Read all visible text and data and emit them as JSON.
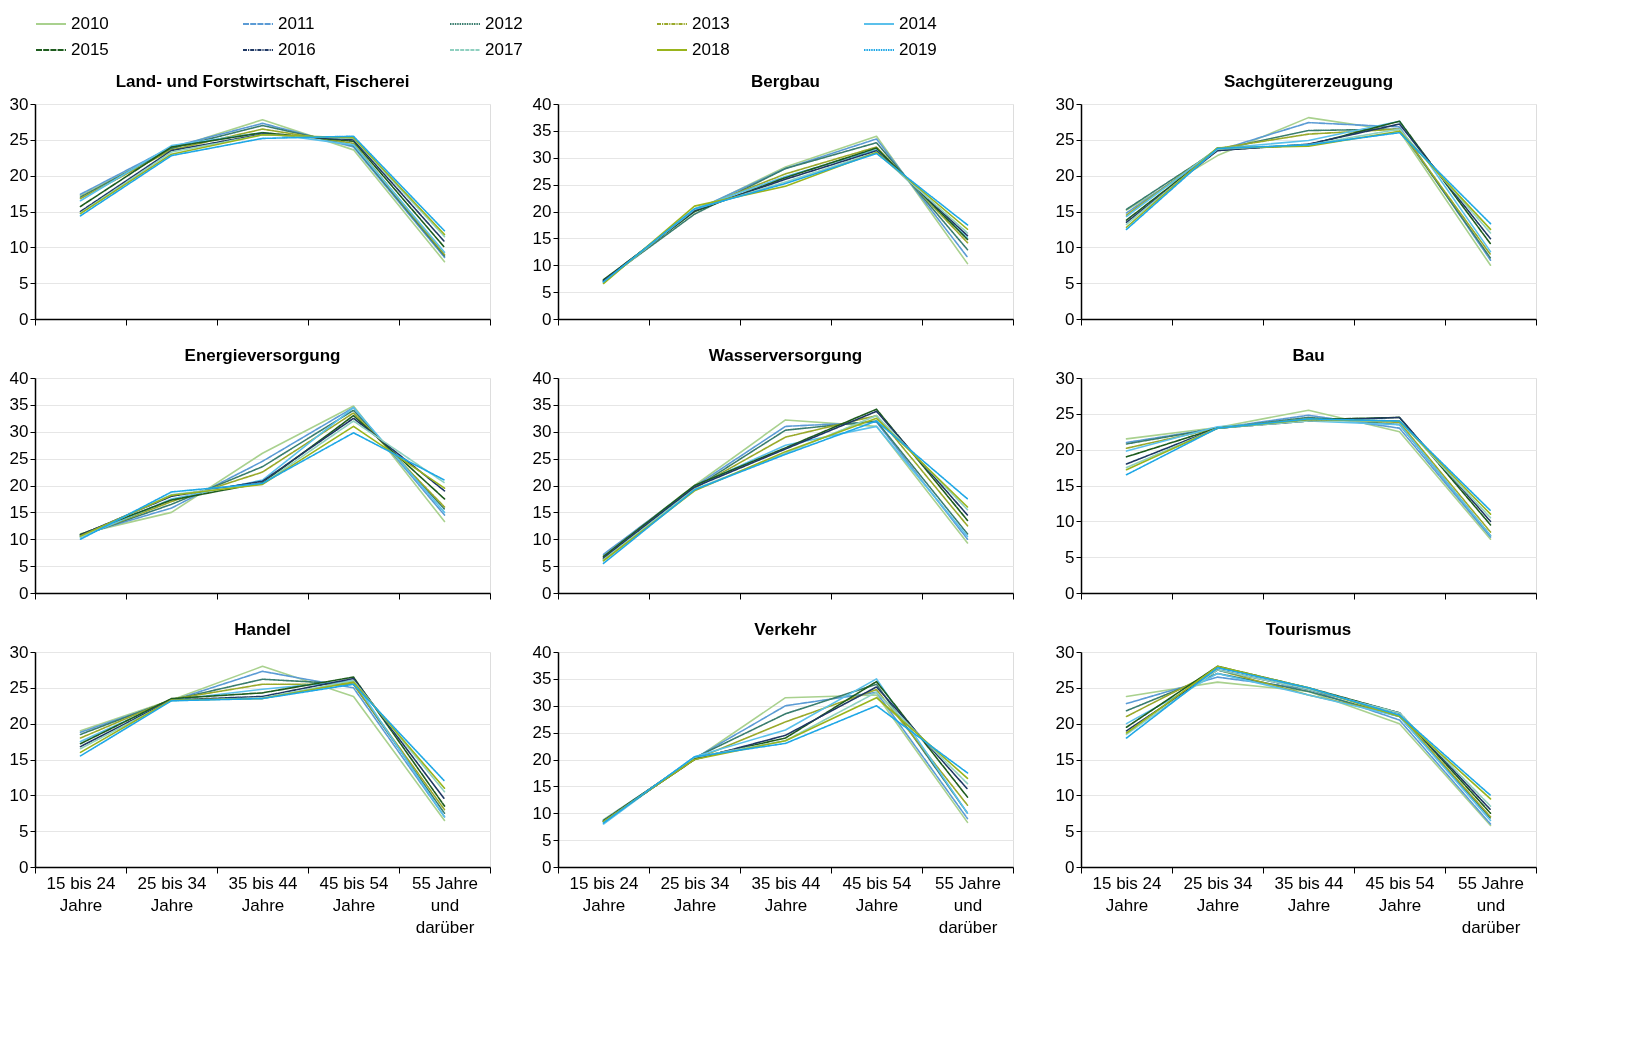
{
  "chart_data": [
    {
      "type": "line",
      "title": "Land- und Forstwirtschaft, Fischerei",
      "categories": [
        "15 bis 24 Jahre",
        "25 bis 34 Jahre",
        "35 bis 44 Jahre",
        "45 bis 54 Jahre",
        "55 Jahre und darüber"
      ],
      "ylim": [
        0,
        30
      ],
      "yticks": [
        0,
        5,
        10,
        15,
        20,
        25,
        30
      ],
      "grid": "y",
      "legend": "top",
      "tick_labels": "y",
      "series": [
        {
          "name": "2010",
          "color": "#a9d18e",
          "line_style": "solid",
          "values": [
            17.2,
            23.8,
            27.8,
            23.6,
            8.0
          ]
        },
        {
          "name": "2011",
          "color": "#5b9bd5",
          "line_style": "longdash",
          "values": [
            17.4,
            24.0,
            27.3,
            24.0,
            8.6
          ]
        },
        {
          "name": "2012",
          "color": "#3a7d6e",
          "line_style": "dotted",
          "values": [
            17.0,
            23.8,
            27.0,
            24.2,
            8.8
          ]
        },
        {
          "name": "2013",
          "color": "#9aa92a",
          "line_style": "dashdot",
          "values": [
            16.8,
            23.6,
            26.5,
            24.5,
            9.0
          ]
        },
        {
          "name": "2014",
          "color": "#5bc0eb",
          "line_style": "solid",
          "values": [
            16.5,
            24.2,
            26.0,
            24.3,
            9.3
          ]
        },
        {
          "name": "2015",
          "color": "#1e5c1e",
          "line_style": "longdash",
          "values": [
            15.7,
            24.0,
            26.0,
            24.8,
            10.0
          ]
        },
        {
          "name": "2016",
          "color": "#1f3864",
          "line_style": "dashdot",
          "values": [
            15.0,
            23.5,
            25.8,
            25.0,
            10.8
          ]
        },
        {
          "name": "2017",
          "color": "#8fd0c0",
          "line_style": "dashed",
          "values": [
            14.8,
            23.3,
            25.7,
            25.2,
            11.5
          ]
        },
        {
          "name": "2018",
          "color": "#99b41c",
          "line_style": "solid",
          "values": [
            14.7,
            23.0,
            25.7,
            25.3,
            11.8
          ]
        },
        {
          "name": "2019",
          "color": "#1ea7e6",
          "line_style": "dotted",
          "values": [
            14.4,
            22.8,
            25.2,
            25.5,
            12.3
          ]
        }
      ]
    },
    {
      "type": "line",
      "title": "Bergbau",
      "categories": [
        "15 bis 24 Jahre",
        "25 bis 34 Jahre",
        "35 bis 44 Jahre",
        "45 bis 54 Jahre",
        "55 Jahre und darüber"
      ],
      "ylim": [
        0,
        40
      ],
      "yticks": [
        0,
        5,
        10,
        15,
        20,
        25,
        30,
        35,
        40
      ],
      "grid": "y",
      "legend": "top",
      "tick_labels": "y",
      "series": [
        {
          "name": "2010",
          "color": "#a9d18e",
          "line_style": "solid",
          "values": [
            7.2,
            20.0,
            28.3,
            34.0,
            10.3
          ]
        },
        {
          "name": "2011",
          "color": "#5b9bd5",
          "line_style": "longdash",
          "values": [
            7.0,
            20.2,
            28.0,
            33.5,
            11.5
          ]
        },
        {
          "name": "2012",
          "color": "#3a7d6e",
          "line_style": "dotted",
          "values": [
            7.1,
            19.5,
            28.0,
            32.8,
            12.9
          ]
        },
        {
          "name": "2013",
          "color": "#9aa92a",
          "line_style": "dashdot",
          "values": [
            6.9,
            20.3,
            27.0,
            32.0,
            14.2
          ]
        },
        {
          "name": "2014",
          "color": "#5bc0eb",
          "line_style": "solid",
          "values": [
            7.0,
            20.5,
            26.5,
            31.5,
            15.0
          ]
        },
        {
          "name": "2015",
          "color": "#1e5c1e",
          "line_style": "longdash",
          "values": [
            7.3,
            20.0,
            26.3,
            31.8,
            14.8
          ]
        },
        {
          "name": "2016",
          "color": "#1f3864",
          "line_style": "dashdot",
          "values": [
            7.1,
            20.2,
            26.0,
            31.3,
            15.5
          ]
        },
        {
          "name": "2017",
          "color": "#8fd0c0",
          "line_style": "dashed",
          "values": [
            6.8,
            20.4,
            25.5,
            31.0,
            16.0
          ]
        },
        {
          "name": "2018",
          "color": "#99b41c",
          "line_style": "solid",
          "values": [
            6.6,
            21.0,
            24.7,
            31.0,
            16.7
          ]
        },
        {
          "name": "2019",
          "color": "#1ea7e6",
          "line_style": "dotted",
          "values": [
            6.9,
            20.5,
            25.2,
            30.8,
            17.5
          ]
        }
      ]
    },
    {
      "type": "line",
      "title": "Sachgütererzeugung",
      "categories": [
        "15 bis 24 Jahre",
        "25 bis 34 Jahre",
        "35 bis 44 Jahre",
        "45 bis 54 Jahre",
        "55 Jahre und darüber"
      ],
      "ylim": [
        0,
        30
      ],
      "yticks": [
        0,
        5,
        10,
        15,
        20,
        25,
        30
      ],
      "grid": "y",
      "legend": "top",
      "tick_labels": "y",
      "series": [
        {
          "name": "2010",
          "color": "#a9d18e",
          "line_style": "solid",
          "values": [
            15.2,
            22.8,
            28.1,
            26.2,
            7.5
          ]
        },
        {
          "name": "2011",
          "color": "#5b9bd5",
          "line_style": "longdash",
          "values": [
            14.8,
            23.5,
            27.4,
            26.8,
            8.2
          ]
        },
        {
          "name": "2012",
          "color": "#3a7d6e",
          "line_style": "dotted",
          "values": [
            15.3,
            23.6,
            26.3,
            26.5,
            8.5
          ]
        },
        {
          "name": "2013",
          "color": "#9aa92a",
          "line_style": "dashdot",
          "values": [
            14.5,
            23.8,
            25.8,
            26.5,
            9.0
          ]
        },
        {
          "name": "2014",
          "color": "#5bc0eb",
          "line_style": "solid",
          "values": [
            14.3,
            23.8,
            24.9,
            27.6,
            9.4
          ]
        },
        {
          "name": "2015",
          "color": "#1e5c1e",
          "line_style": "longdash",
          "values": [
            13.8,
            23.6,
            24.3,
            27.6,
            10.5
          ]
        },
        {
          "name": "2016",
          "color": "#1f3864",
          "line_style": "dashdot",
          "values": [
            13.5,
            23.5,
            24.4,
            27.2,
            11.2
          ]
        },
        {
          "name": "2017",
          "color": "#8fd0c0",
          "line_style": "dashed",
          "values": [
            13.2,
            23.7,
            24.3,
            26.5,
            12.0
          ]
        },
        {
          "name": "2018",
          "color": "#99b41c",
          "line_style": "solid",
          "values": [
            12.8,
            23.9,
            24.1,
            26.2,
            12.5
          ]
        },
        {
          "name": "2019",
          "color": "#1ea7e6",
          "line_style": "dotted",
          "values": [
            12.5,
            23.8,
            24.3,
            26.0,
            13.3
          ]
        }
      ]
    },
    {
      "type": "line",
      "title": "Energieversorgung",
      "categories": [
        "15 bis 24 Jahre",
        "25 bis 34 Jahre",
        "35 bis 44 Jahre",
        "45 bis 54 Jahre",
        "55 Jahre und darüber"
      ],
      "ylim": [
        0,
        40
      ],
      "yticks": [
        0,
        5,
        10,
        15,
        20,
        25,
        30,
        35,
        40
      ],
      "grid": "y",
      "legend": "top",
      "tick_labels": "y",
      "series": [
        {
          "name": "2010",
          "color": "#a9d18e",
          "line_style": "solid",
          "values": [
            11.0,
            15.0,
            26.0,
            34.8,
            13.3
          ]
        },
        {
          "name": "2011",
          "color": "#5b9bd5",
          "line_style": "longdash",
          "values": [
            10.8,
            15.8,
            24.5,
            34.5,
            14.5
          ]
        },
        {
          "name": "2012",
          "color": "#3a7d6e",
          "line_style": "dotted",
          "values": [
            10.6,
            16.5,
            23.5,
            34.0,
            15.6
          ]
        },
        {
          "name": "2013",
          "color": "#9aa92a",
          "line_style": "dashdot",
          "values": [
            10.5,
            17.0,
            22.5,
            33.5,
            16.0
          ]
        },
        {
          "name": "2014",
          "color": "#5bc0eb",
          "line_style": "solid",
          "values": [
            10.3,
            17.5,
            21.0,
            34.5,
            15.0
          ]
        },
        {
          "name": "2015",
          "color": "#1e5c1e",
          "line_style": "longdash",
          "values": [
            10.9,
            17.3,
            20.5,
            33.0,
            17.5
          ]
        },
        {
          "name": "2016",
          "color": "#1f3864",
          "line_style": "dashdot",
          "values": [
            10.8,
            18.0,
            20.8,
            32.5,
            19.0
          ]
        },
        {
          "name": "2017",
          "color": "#8fd0c0",
          "line_style": "dashed",
          "values": [
            10.4,
            18.3,
            20.3,
            32.0,
            20.5
          ]
        },
        {
          "name": "2018",
          "color": "#99b41c",
          "line_style": "solid",
          "values": [
            10.6,
            18.2,
            20.2,
            31.0,
            19.5
          ]
        },
        {
          "name": "2019",
          "color": "#1ea7e6",
          "line_style": "dotted",
          "values": [
            10.0,
            18.8,
            20.4,
            29.8,
            21.0
          ]
        }
      ]
    },
    {
      "type": "line",
      "title": "Wasserversorgung",
      "categories": [
        "15 bis 24 Jahre",
        "25 bis 34 Jahre",
        "35 bis 44 Jahre",
        "45 bis 54 Jahre",
        "55 Jahre und darüber"
      ],
      "ylim": [
        0,
        40
      ],
      "yticks": [
        0,
        5,
        10,
        15,
        20,
        25,
        30,
        35,
        40
      ],
      "grid": "y",
      "legend": "top",
      "tick_labels": "y",
      "series": [
        {
          "name": "2010",
          "color": "#a9d18e",
          "line_style": "solid",
          "values": [
            7.0,
            20.0,
            32.2,
            31.0,
            9.3
          ]
        },
        {
          "name": "2011",
          "color": "#5b9bd5",
          "line_style": "longdash",
          "values": [
            7.2,
            19.8,
            31.0,
            31.8,
            10.0
          ]
        },
        {
          "name": "2012",
          "color": "#3a7d6e",
          "line_style": "dotted",
          "values": [
            6.5,
            19.5,
            30.3,
            32.0,
            11.0
          ]
        },
        {
          "name": "2013",
          "color": "#9aa92a",
          "line_style": "dashdot",
          "values": [
            6.3,
            19.5,
            29.0,
            33.0,
            12.5
          ]
        },
        {
          "name": "2014",
          "color": "#5bc0eb",
          "line_style": "solid",
          "values": [
            6.0,
            19.8,
            27.5,
            31.0,
            10.5
          ]
        },
        {
          "name": "2015",
          "color": "#1e5c1e",
          "line_style": "longdash",
          "values": [
            6.8,
            20.0,
            27.0,
            34.2,
            13.5
          ]
        },
        {
          "name": "2016",
          "color": "#1f3864",
          "line_style": "dashdot",
          "values": [
            6.5,
            19.7,
            26.8,
            33.8,
            14.5
          ]
        },
        {
          "name": "2017",
          "color": "#8fd0c0",
          "line_style": "dashed",
          "values": [
            6.2,
            19.3,
            26.0,
            33.0,
            15.5
          ]
        },
        {
          "name": "2018",
          "color": "#99b41c",
          "line_style": "solid",
          "values": [
            6.0,
            19.0,
            26.3,
            32.5,
            16.0
          ]
        },
        {
          "name": "2019",
          "color": "#1ea7e6",
          "line_style": "dotted",
          "values": [
            5.5,
            19.2,
            25.8,
            32.0,
            17.5
          ]
        }
      ]
    },
    {
      "type": "line",
      "title": "Bau",
      "categories": [
        "15 bis 24 Jahre",
        "25 bis 34 Jahre",
        "35 bis 44 Jahre",
        "45 bis 54 Jahre",
        "55 Jahre und darüber"
      ],
      "ylim": [
        0,
        30
      ],
      "yticks": [
        0,
        5,
        10,
        15,
        20,
        25,
        30
      ],
      "grid": "y",
      "legend": "top",
      "tick_labels": "y",
      "series": [
        {
          "name": "2010",
          "color": "#a9d18e",
          "line_style": "solid",
          "values": [
            21.5,
            23.1,
            25.5,
            22.5,
            7.5
          ]
        },
        {
          "name": "2011",
          "color": "#5b9bd5",
          "line_style": "longdash",
          "values": [
            21.0,
            23.0,
            24.8,
            23.0,
            7.8
          ]
        },
        {
          "name": "2012",
          "color": "#3a7d6e",
          "line_style": "dotted",
          "values": [
            20.8,
            23.0,
            24.5,
            23.5,
            8.0
          ]
        },
        {
          "name": "2013",
          "color": "#9aa92a",
          "line_style": "dashdot",
          "values": [
            20.2,
            23.0,
            24.3,
            23.8,
            8.5
          ]
        },
        {
          "name": "2014",
          "color": "#5bc0eb",
          "line_style": "solid",
          "values": [
            19.8,
            23.2,
            24.0,
            23.5,
            8.0
          ]
        },
        {
          "name": "2015",
          "color": "#1e5c1e",
          "line_style": "longdash",
          "values": [
            19.0,
            23.0,
            24.2,
            24.5,
            9.5
          ]
        },
        {
          "name": "2016",
          "color": "#1f3864",
          "line_style": "dashdot",
          "values": [
            18.0,
            23.0,
            24.0,
            24.5,
            10.0
          ]
        },
        {
          "name": "2017",
          "color": "#8fd0c0",
          "line_style": "dashed",
          "values": [
            17.5,
            23.0,
            24.0,
            24.0,
            10.5
          ]
        },
        {
          "name": "2018",
          "color": "#99b41c",
          "line_style": "solid",
          "values": [
            17.2,
            23.0,
            24.2,
            24.0,
            11.0
          ]
        },
        {
          "name": "2019",
          "color": "#1ea7e6",
          "line_style": "dotted",
          "values": [
            16.5,
            23.0,
            24.3,
            24.0,
            11.5
          ]
        }
      ]
    },
    {
      "type": "line",
      "title": "Handel",
      "categories": [
        "15 bis 24 Jahre",
        "25 bis 34 Jahre",
        "35 bis 44 Jahre",
        "45 bis 54 Jahre",
        "55 Jahre und darüber"
      ],
      "ylim": [
        0,
        30
      ],
      "yticks": [
        0,
        5,
        10,
        15,
        20,
        25,
        30
      ],
      "grid": "y",
      "legend": "top",
      "series": [
        {
          "name": "2010",
          "color": "#a9d18e",
          "line_style": "solid",
          "values": [
            19.0,
            23.3,
            28.0,
            23.8,
            6.5
          ]
        },
        {
          "name": "2011",
          "color": "#5b9bd5",
          "line_style": "longdash",
          "values": [
            18.8,
            23.2,
            27.3,
            25.0,
            7.0
          ]
        },
        {
          "name": "2012",
          "color": "#3a7d6e",
          "line_style": "dotted",
          "values": [
            18.5,
            23.3,
            26.2,
            25.5,
            7.5
          ]
        },
        {
          "name": "2013",
          "color": "#9aa92a",
          "line_style": "dashdot",
          "values": [
            18.0,
            23.4,
            25.5,
            25.5,
            8.0
          ]
        },
        {
          "name": "2014",
          "color": "#5bc0eb",
          "line_style": "solid",
          "values": [
            17.5,
            23.3,
            24.8,
            26.0,
            7.0
          ]
        },
        {
          "name": "2015",
          "color": "#1e5c1e",
          "line_style": "longdash",
          "values": [
            17.2,
            23.5,
            24.3,
            26.5,
            8.5
          ]
        },
        {
          "name": "2016",
          "color": "#1f3864",
          "line_style": "dashdot",
          "values": [
            16.8,
            23.3,
            23.8,
            26.3,
            9.5
          ]
        },
        {
          "name": "2017",
          "color": "#8fd0c0",
          "line_style": "dashed",
          "values": [
            16.5,
            23.2,
            23.6,
            26.0,
            10.5
          ]
        },
        {
          "name": "2018",
          "color": "#99b41c",
          "line_style": "solid",
          "values": [
            16.0,
            23.3,
            23.5,
            25.8,
            11.0
          ]
        },
        {
          "name": "2019",
          "color": "#1ea7e6",
          "line_style": "dotted",
          "values": [
            15.5,
            23.2,
            23.5,
            25.5,
            12.0
          ]
        }
      ]
    },
    {
      "type": "line",
      "title": "Verkehr",
      "categories": [
        "15 bis 24 Jahre",
        "25 bis 34 Jahre",
        "35 bis 44 Jahre",
        "45 bis 54 Jahre",
        "55 Jahre und darüber"
      ],
      "ylim": [
        0,
        40
      ],
      "yticks": [
        0,
        5,
        10,
        15,
        20,
        25,
        30,
        35,
        40
      ],
      "grid": "y",
      "legend": "top",
      "series": [
        {
          "name": "2010",
          "color": "#a9d18e",
          "line_style": "solid",
          "values": [
            8.8,
            20.0,
            31.5,
            32.0,
            8.3
          ]
        },
        {
          "name": "2011",
          "color": "#5b9bd5",
          "line_style": "longdash",
          "values": [
            8.7,
            20.2,
            30.0,
            32.5,
            9.0
          ]
        },
        {
          "name": "2012",
          "color": "#3a7d6e",
          "line_style": "dotted",
          "values": [
            8.5,
            20.3,
            28.5,
            34.0,
            10.0
          ]
        },
        {
          "name": "2013",
          "color": "#9aa92a",
          "line_style": "dashdot",
          "values": [
            8.5,
            20.0,
            27.0,
            33.0,
            11.5
          ]
        },
        {
          "name": "2014",
          "color": "#5bc0eb",
          "line_style": "solid",
          "values": [
            8.0,
            20.5,
            25.5,
            35.0,
            10.0
          ]
        },
        {
          "name": "2015",
          "color": "#1e5c1e",
          "line_style": "longdash",
          "values": [
            8.6,
            20.2,
            24.0,
            34.5,
            13.0
          ]
        },
        {
          "name": "2016",
          "color": "#1f3864",
          "line_style": "dashdot",
          "values": [
            8.5,
            20.0,
            24.5,
            33.5,
            14.5
          ]
        },
        {
          "name": "2017",
          "color": "#8fd0c0",
          "line_style": "dashed",
          "values": [
            8.3,
            20.4,
            23.5,
            32.5,
            15.5
          ]
        },
        {
          "name": "2018",
          "color": "#99b41c",
          "line_style": "solid",
          "values": [
            8.5,
            20.0,
            23.5,
            31.5,
            16.5
          ]
        },
        {
          "name": "2019",
          "color": "#1ea7e6",
          "line_style": "dotted",
          "values": [
            8.2,
            20.5,
            23.0,
            30.0,
            17.5
          ]
        }
      ]
    },
    {
      "type": "line",
      "title": "Tourismus",
      "categories": [
        "15 bis 24 Jahre",
        "25 bis 34 Jahre",
        "35 bis 44 Jahre",
        "45 bis 54 Jahre",
        "55 Jahre und darüber"
      ],
      "ylim": [
        0,
        30
      ],
      "yticks": [
        0,
        5,
        10,
        15,
        20,
        25,
        30
      ],
      "grid": "y",
      "legend": "top",
      "series": [
        {
          "name": "2010",
          "color": "#a9d18e",
          "line_style": "solid",
          "values": [
            23.8,
            25.8,
            24.5,
            20.0,
            5.8
          ]
        },
        {
          "name": "2011",
          "color": "#5b9bd5",
          "line_style": "longdash",
          "values": [
            22.8,
            26.5,
            24.8,
            20.5,
            6.0
          ]
        },
        {
          "name": "2012",
          "color": "#3a7d6e",
          "line_style": "dotted",
          "values": [
            21.8,
            27.0,
            24.5,
            21.0,
            6.8
          ]
        },
        {
          "name": "2013",
          "color": "#9aa92a",
          "line_style": "dashdot",
          "values": [
            21.0,
            27.5,
            24.0,
            21.2,
            7.0
          ]
        },
        {
          "name": "2014",
          "color": "#5bc0eb",
          "line_style": "solid",
          "values": [
            20.0,
            27.0,
            24.0,
            21.0,
            6.5
          ]
        },
        {
          "name": "2015",
          "color": "#1e5c1e",
          "line_style": "longdash",
          "values": [
            19.5,
            28.0,
            25.0,
            21.5,
            7.5
          ]
        },
        {
          "name": "2016",
          "color": "#1f3864",
          "line_style": "dashdot",
          "values": [
            19.0,
            27.5,
            24.8,
            21.5,
            8.0
          ]
        },
        {
          "name": "2017",
          "color": "#8fd0c0",
          "line_style": "dashed",
          "values": [
            18.5,
            27.5,
            24.8,
            21.5,
            8.5
          ]
        },
        {
          "name": "2018",
          "color": "#99b41c",
          "line_style": "solid",
          "values": [
            18.7,
            28.0,
            25.0,
            21.0,
            9.5
          ]
        },
        {
          "name": "2019",
          "color": "#1ea7e6",
          "line_style": "dotted",
          "values": [
            18.0,
            27.8,
            25.0,
            21.2,
            10.0
          ]
        }
      ]
    }
  ]
}
